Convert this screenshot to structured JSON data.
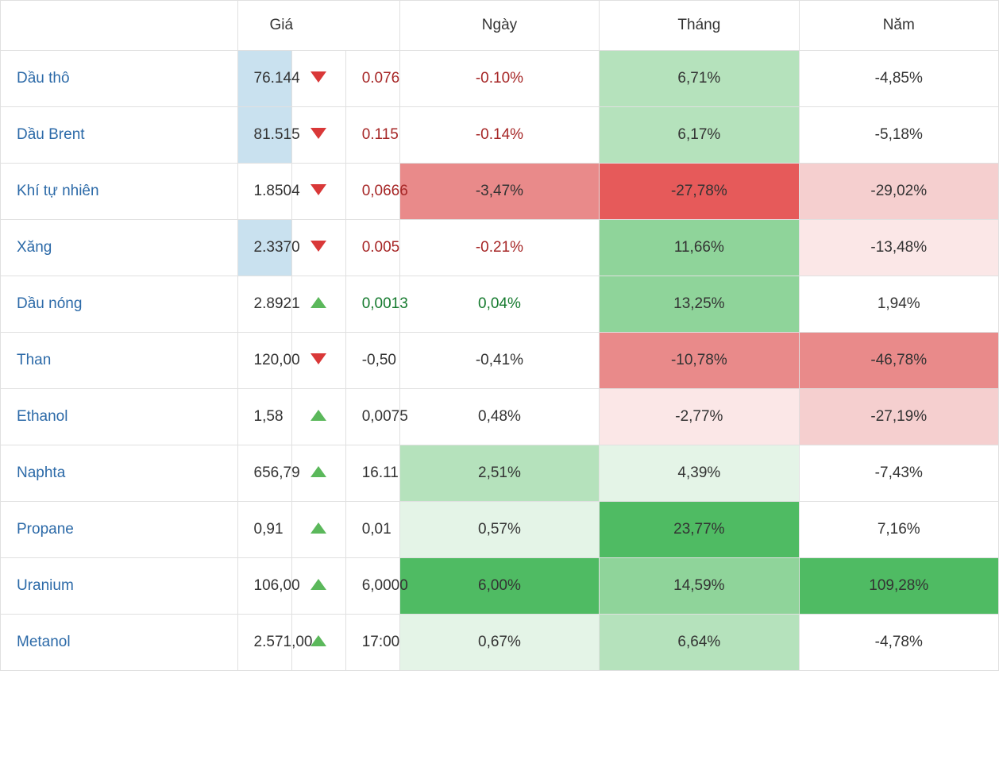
{
  "table": {
    "type": "table",
    "headers": {
      "name": "",
      "price": "Giá",
      "icon": "",
      "change": "",
      "day": "Ngày",
      "month": "Tháng",
      "year": "Năm"
    },
    "colors": {
      "border": "#e0e0e0",
      "link": "#2c6aa8",
      "text": "#333333",
      "down_text": "#a62626",
      "up_text": "#157a2e",
      "neutral_text": "#333333",
      "down_icon": "#d93838",
      "up_icon": "#5bb85b",
      "price_highlight_bg": "#c9e1ef",
      "bg_green_strong": "#4fbb63",
      "bg_green_mid": "#8fd49a",
      "bg_green_light": "#b5e2bc",
      "bg_green_pale": "#e4f4e7",
      "bg_red_strong": "#e65a5a",
      "bg_red_mid": "#e98a8a",
      "bg_red_light": "#f5cfcf",
      "bg_red_pale": "#fbe7e7",
      "bg_white": "#ffffff"
    },
    "rows": [
      {
        "name": "Dầu thô",
        "price": "76.144",
        "price_bg": "#c9e1ef",
        "direction": "down",
        "change": "0.076",
        "change_color": "#a62626",
        "day": "-0.10%",
        "day_bg": "#ffffff",
        "day_color": "#a62626",
        "month": "6,71%",
        "month_bg": "#b5e2bc",
        "month_color": "#333333",
        "year": "-4,85%",
        "year_bg": "#ffffff",
        "year_color": "#333333"
      },
      {
        "name": "Dầu Brent",
        "price": "81.515",
        "price_bg": "#c9e1ef",
        "direction": "down",
        "change": "0.115",
        "change_color": "#a62626",
        "day": "-0.14%",
        "day_bg": "#ffffff",
        "day_color": "#a62626",
        "month": "6,17%",
        "month_bg": "#b5e2bc",
        "month_color": "#333333",
        "year": "-5,18%",
        "year_bg": "#ffffff",
        "year_color": "#333333"
      },
      {
        "name": "Khí tự nhiên",
        "price": "1.8504",
        "price_bg": "#ffffff",
        "direction": "down",
        "change": "0,0666",
        "change_color": "#a62626",
        "day": "-3,47%",
        "day_bg": "#e98a8a",
        "day_color": "#333333",
        "month": "-27,78%",
        "month_bg": "#e65a5a",
        "month_color": "#333333",
        "year": "-29,02%",
        "year_bg": "#f5cfcf",
        "year_color": "#333333"
      },
      {
        "name": "Xăng",
        "price": "2.3370",
        "price_bg": "#c9e1ef",
        "direction": "down",
        "change": "0.005",
        "change_color": "#a62626",
        "day": "-0.21%",
        "day_bg": "#ffffff",
        "day_color": "#a62626",
        "month": "11,66%",
        "month_bg": "#8fd49a",
        "month_color": "#333333",
        "year": "-13,48%",
        "year_bg": "#fbe7e7",
        "year_color": "#333333"
      },
      {
        "name": "Dầu nóng",
        "price": "2.8921",
        "price_bg": "#ffffff",
        "direction": "up",
        "change": "0,0013",
        "change_color": "#157a2e",
        "day": "0,04%",
        "day_bg": "#ffffff",
        "day_color": "#157a2e",
        "month": "13,25%",
        "month_bg": "#8fd49a",
        "month_color": "#333333",
        "year": "1,94%",
        "year_bg": "#ffffff",
        "year_color": "#333333"
      },
      {
        "name": "Than",
        "price": "120,00",
        "price_bg": "#ffffff",
        "direction": "down",
        "change": "-0,50",
        "change_color": "#333333",
        "day": "-0,41%",
        "day_bg": "#ffffff",
        "day_color": "#333333",
        "month": "-10,78%",
        "month_bg": "#e98a8a",
        "month_color": "#333333",
        "year": "-46,78%",
        "year_bg": "#e98a8a",
        "year_color": "#333333"
      },
      {
        "name": "Ethanol",
        "price": "1,58",
        "price_bg": "#ffffff",
        "direction": "up",
        "change": "0,0075",
        "change_color": "#333333",
        "day": "0,48%",
        "day_bg": "#ffffff",
        "day_color": "#333333",
        "month": "-2,77%",
        "month_bg": "#fbe7e7",
        "month_color": "#333333",
        "year": "-27,19%",
        "year_bg": "#f5cfcf",
        "year_color": "#333333"
      },
      {
        "name": "Naphta",
        "price": "656,79",
        "price_bg": "#ffffff",
        "direction": "up",
        "change": "16.11",
        "change_color": "#333333",
        "day": "2,51%",
        "day_bg": "#b5e2bc",
        "day_color": "#333333",
        "month": "4,39%",
        "month_bg": "#e4f4e7",
        "month_color": "#333333",
        "year": "-7,43%",
        "year_bg": "#ffffff",
        "year_color": "#333333"
      },
      {
        "name": "Propane",
        "price": "0,91",
        "price_bg": "#ffffff",
        "direction": "up",
        "change": "0,01",
        "change_color": "#333333",
        "day": "0,57%",
        "day_bg": "#e4f4e7",
        "day_color": "#333333",
        "month": "23,77%",
        "month_bg": "#4fbb63",
        "month_color": "#333333",
        "year": "7,16%",
        "year_bg": "#ffffff",
        "year_color": "#333333"
      },
      {
        "name": "Uranium",
        "price": "106,00",
        "price_bg": "#ffffff",
        "direction": "up",
        "change": "6,0000",
        "change_color": "#333333",
        "day": "6,00%",
        "day_bg": "#4fbb63",
        "day_color": "#333333",
        "month": "14,59%",
        "month_bg": "#8fd49a",
        "month_color": "#333333",
        "year": "109,28%",
        "year_bg": "#4fbb63",
        "year_color": "#333333"
      },
      {
        "name": "Metanol",
        "price": "2.571,00",
        "price_bg": "#ffffff",
        "direction": "up",
        "change": "17:00",
        "change_color": "#333333",
        "day": "0,67%",
        "day_bg": "#e4f4e7",
        "day_color": "#333333",
        "month": "6,64%",
        "month_bg": "#b5e2bc",
        "month_color": "#333333",
        "year": "-4,78%",
        "year_bg": "#ffffff",
        "year_color": "#333333"
      }
    ]
  }
}
